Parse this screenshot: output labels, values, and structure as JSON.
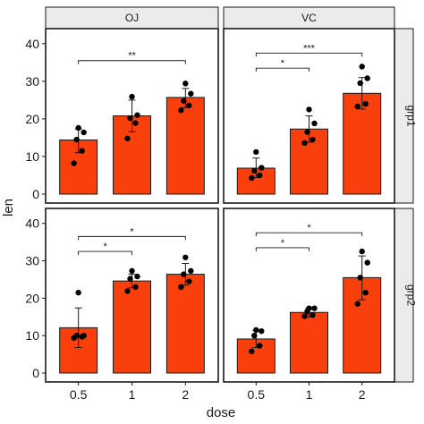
{
  "chart_data": {
    "type": "bar",
    "xlabel": "dose",
    "ylabel": "len",
    "ylim": [
      0,
      44
    ],
    "y_ticks": [
      0,
      10,
      20,
      30,
      40
    ],
    "x_categories": [
      "0.5",
      "1",
      "2"
    ],
    "col_strips": [
      "OJ",
      "VC"
    ],
    "row_strips": [
      "grp1",
      "grp2"
    ],
    "colors": {
      "bar": "#f93f0b",
      "bar_outline": "#1a1a1a",
      "point": "#000000"
    },
    "panels": [
      {
        "col": "OJ",
        "row": "grp1",
        "bars": [
          {
            "x": "0.5",
            "value": 14.4,
            "err_low": 11.0,
            "err_high": 17.3,
            "points": [
              8.2,
              11.5,
              14.5,
              16.4,
              17.6
            ]
          },
          {
            "x": "1",
            "value": 20.8,
            "err_low": 16.6,
            "err_high": 25.0,
            "points": [
              14.8,
              18.9,
              20.2,
              21.0,
              25.9
            ]
          },
          {
            "x": "2",
            "value": 25.7,
            "err_low": 23.0,
            "err_high": 28.1,
            "points": [
              22.3,
              23.6,
              24.8,
              26.7,
              29.4
            ]
          }
        ],
        "comparisons": [
          {
            "from": "0.5",
            "to": "2",
            "label": "**",
            "y": 35.5
          }
        ]
      },
      {
        "col": "VC",
        "row": "grp1",
        "bars": [
          {
            "x": "0.5",
            "value": 6.9,
            "err_low": 4.4,
            "err_high": 9.6,
            "points": [
              4.3,
              5.0,
              6.2,
              7.0,
              11.2
            ]
          },
          {
            "x": "1",
            "value": 17.3,
            "err_low": 13.8,
            "err_high": 20.8,
            "points": [
              13.6,
              14.5,
              16.5,
              18.8,
              22.5
            ]
          },
          {
            "x": "2",
            "value": 26.8,
            "err_low": 22.6,
            "err_high": 31.0,
            "points": [
              23.3,
              24.0,
              29.5,
              30.8,
              33.9
            ]
          }
        ],
        "comparisons": [
          {
            "from": "0.5",
            "to": "1",
            "label": "*",
            "y": 33.5
          },
          {
            "from": "0.5",
            "to": "2",
            "label": "***",
            "y": 37.5
          }
        ]
      },
      {
        "col": "OJ",
        "row": "grp2",
        "bars": [
          {
            "x": "0.5",
            "value": 12.1,
            "err_low": 6.8,
            "err_high": 17.4,
            "points": [
              9.4,
              9.7,
              10.0,
              10.0,
              21.5
            ]
          },
          {
            "x": "1",
            "value": 24.6,
            "err_low": 22.8,
            "err_high": 26.4,
            "points": [
              21.9,
              23.0,
              25.2,
              25.8,
              27.3
            ]
          },
          {
            "x": "2",
            "value": 26.4,
            "err_low": 23.5,
            "err_high": 29.3,
            "points": [
              23.0,
              24.5,
              26.4,
              27.3,
              30.9
            ]
          }
        ],
        "comparisons": [
          {
            "from": "0.5",
            "to": "1",
            "label": "*",
            "y": 32.5
          },
          {
            "from": "0.5",
            "to": "2",
            "label": "*",
            "y": 36.5
          }
        ]
      },
      {
        "col": "VC",
        "row": "grp2",
        "bars": [
          {
            "x": "0.5",
            "value": 9.1,
            "err_low": 6.8,
            "err_high": 11.4,
            "points": [
              5.8,
              7.3,
              10.0,
              11.2,
              11.5
            ]
          },
          {
            "x": "1",
            "value": 16.2,
            "err_low": 15.0,
            "err_high": 17.4,
            "points": [
              15.2,
              15.5,
              16.5,
              17.3,
              17.3
            ]
          },
          {
            "x": "2",
            "value": 25.5,
            "err_low": 19.6,
            "err_high": 31.3,
            "points": [
              18.5,
              21.5,
              25.5,
              29.5,
              32.5
            ]
          }
        ],
        "comparisons": [
          {
            "from": "0.5",
            "to": "1",
            "label": "*",
            "y": 33.5
          },
          {
            "from": "0.5",
            "to": "2",
            "label": "*",
            "y": 37.5
          }
        ]
      }
    ]
  }
}
